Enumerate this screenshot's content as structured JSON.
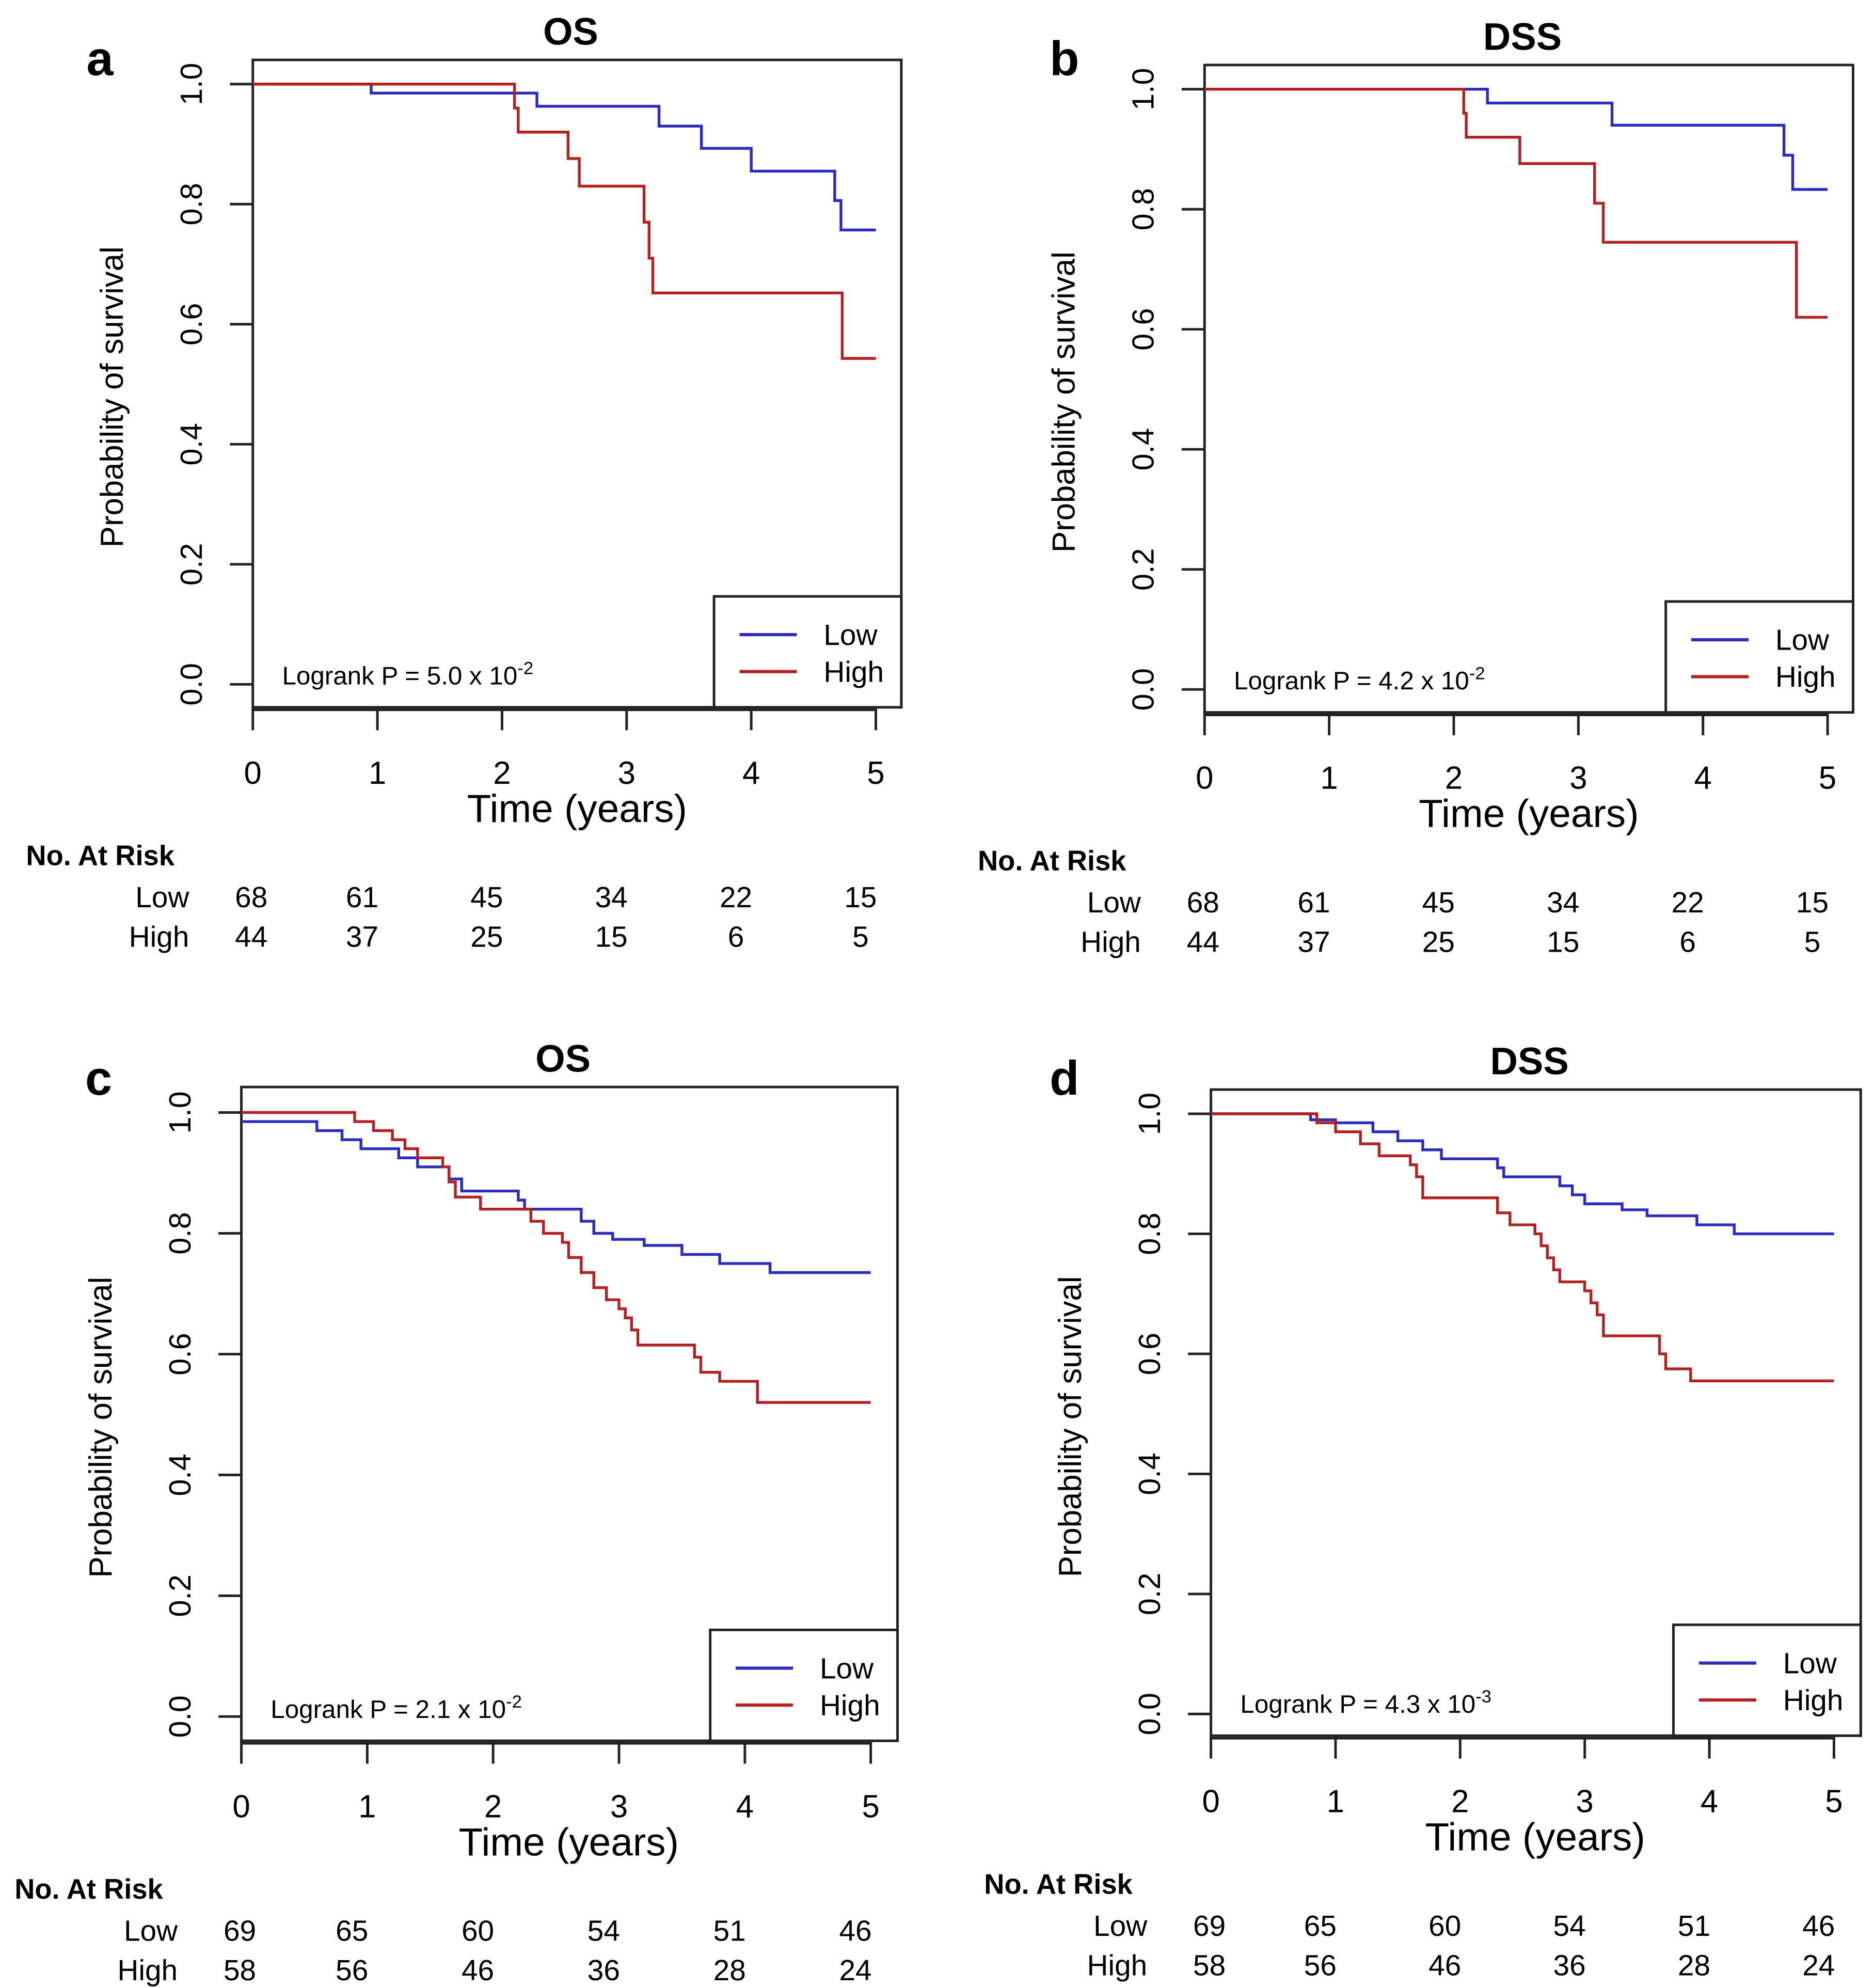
{
  "colors": {
    "low": "#2b2bbd",
    "high": "#b22222",
    "axis": "#222222"
  },
  "chart_data": [
    {
      "panel": "a",
      "type": "line",
      "step": true,
      "title": "OS",
      "xlabel": "Time (years)",
      "ylabel": "Probability of survival",
      "xlim": [
        0,
        5
      ],
      "ylim": [
        0,
        1
      ],
      "xticks": [
        "0",
        "1",
        "2",
        "3",
        "4",
        "5"
      ],
      "yticks": [
        "0.0",
        "0.2",
        "0.4",
        "0.6",
        "0.8",
        "1.0"
      ],
      "legend": {
        "position": "bottom-right",
        "entries": [
          "Low",
          "High"
        ]
      },
      "annotation": {
        "text": "Logrank P = 5.0 x 10",
        "exp": "-2"
      },
      "series": [
        {
          "name": "Low",
          "points": [
            [
              0,
              1
            ],
            [
              0.95,
              0.985
            ],
            [
              2.28,
              0.963
            ],
            [
              3.26,
              0.93
            ],
            [
              3.6,
              0.893
            ],
            [
              4.0,
              0.855
            ],
            [
              4.67,
              0.806
            ],
            [
              4.72,
              0.757
            ],
            [
              5,
              0.757
            ]
          ]
        },
        {
          "name": "High",
          "points": [
            [
              0,
              1
            ],
            [
              2.1,
              0.96
            ],
            [
              2.13,
              0.92
            ],
            [
              2.53,
              0.876
            ],
            [
              2.62,
              0.83
            ],
            [
              3.14,
              0.77
            ],
            [
              3.18,
              0.71
            ],
            [
              3.21,
              0.652
            ],
            [
              4.73,
              0.543
            ],
            [
              5,
              0.543
            ]
          ]
        }
      ],
      "at_risk": {
        "title": "No. At Risk",
        "rows": [
          {
            "label": "Low",
            "values": [
              "68",
              "61",
              "45",
              "34",
              "22",
              "15"
            ]
          },
          {
            "label": "High",
            "values": [
              "44",
              "37",
              "25",
              "15",
              "6",
              "5"
            ]
          }
        ]
      }
    },
    {
      "panel": "b",
      "type": "line",
      "step": true,
      "title": "DSS",
      "xlabel": "Time (years)",
      "ylabel": "Probability of survival",
      "xlim": [
        0,
        5
      ],
      "ylim": [
        0,
        1
      ],
      "xticks": [
        "0",
        "1",
        "2",
        "3",
        "4",
        "5"
      ],
      "yticks": [
        "0.0",
        "0.2",
        "0.4",
        "0.6",
        "0.8",
        "1.0"
      ],
      "legend": {
        "position": "bottom-right",
        "entries": [
          "Low",
          "High"
        ]
      },
      "annotation": {
        "text": "Logrank P = 4.2 x 10",
        "exp": "-2"
      },
      "series": [
        {
          "name": "Low",
          "points": [
            [
              0,
              1
            ],
            [
              2.27,
              0.977
            ],
            [
              3.27,
              0.94
            ],
            [
              4.65,
              0.89
            ],
            [
              4.72,
              0.833
            ],
            [
              5,
              0.833
            ]
          ]
        },
        {
          "name": "High",
          "points": [
            [
              0,
              1
            ],
            [
              2.08,
              0.96
            ],
            [
              2.1,
              0.92
            ],
            [
              2.53,
              0.876
            ],
            [
              3.13,
              0.81
            ],
            [
              3.2,
              0.745
            ],
            [
              4.75,
              0.62
            ],
            [
              5,
              0.62
            ]
          ]
        }
      ],
      "at_risk": {
        "title": "No. At Risk",
        "rows": [
          {
            "label": "Low",
            "values": [
              "68",
              "61",
              "45",
              "34",
              "22",
              "15"
            ]
          },
          {
            "label": "High",
            "values": [
              "44",
              "37",
              "25",
              "15",
              "6",
              "5"
            ]
          }
        ]
      }
    },
    {
      "panel": "c",
      "type": "line",
      "step": true,
      "title": "OS",
      "xlabel": "Time (years)",
      "ylabel": "Probability of survival",
      "xlim": [
        0,
        5
      ],
      "ylim": [
        0,
        1
      ],
      "xticks": [
        "0",
        "1",
        "2",
        "3",
        "4",
        "5"
      ],
      "yticks": [
        "0.0",
        "0.2",
        "0.4",
        "0.6",
        "0.8",
        "1.0"
      ],
      "legend": {
        "position": "bottom-right",
        "entries": [
          "Low",
          "High"
        ]
      },
      "annotation": {
        "text": "Logrank P = 2.1 x 10",
        "exp": "-2"
      },
      "series": [
        {
          "name": "Low",
          "points": [
            [
              0,
              0.985
            ],
            [
              0.6,
              0.97
            ],
            [
              0.8,
              0.955
            ],
            [
              0.95,
              0.94
            ],
            [
              1.25,
              0.925
            ],
            [
              1.4,
              0.91
            ],
            [
              1.65,
              0.89
            ],
            [
              1.75,
              0.87
            ],
            [
              2.2,
              0.855
            ],
            [
              2.25,
              0.84
            ],
            [
              2.7,
              0.82
            ],
            [
              2.8,
              0.8
            ],
            [
              2.95,
              0.79
            ],
            [
              3.2,
              0.78
            ],
            [
              3.5,
              0.765
            ],
            [
              3.8,
              0.75
            ],
            [
              4.2,
              0.735
            ],
            [
              5,
              0.735
            ]
          ]
        },
        {
          "name": "High",
          "points": [
            [
              0,
              1
            ],
            [
              0.9,
              0.985
            ],
            [
              1.05,
              0.97
            ],
            [
              1.2,
              0.955
            ],
            [
              1.3,
              0.94
            ],
            [
              1.4,
              0.925
            ],
            [
              1.6,
              0.91
            ],
            [
              1.65,
              0.885
            ],
            [
              1.7,
              0.86
            ],
            [
              1.9,
              0.84
            ],
            [
              2.3,
              0.82
            ],
            [
              2.4,
              0.8
            ],
            [
              2.55,
              0.785
            ],
            [
              2.6,
              0.76
            ],
            [
              2.7,
              0.735
            ],
            [
              2.8,
              0.71
            ],
            [
              2.9,
              0.69
            ],
            [
              3.0,
              0.675
            ],
            [
              3.05,
              0.66
            ],
            [
              3.1,
              0.64
            ],
            [
              3.15,
              0.615
            ],
            [
              3.6,
              0.595
            ],
            [
              3.65,
              0.57
            ],
            [
              3.8,
              0.555
            ],
            [
              4.1,
              0.52
            ],
            [
              5,
              0.52
            ]
          ]
        }
      ],
      "at_risk": {
        "title": "No. At Risk",
        "rows": [
          {
            "label": "Low",
            "values": [
              "69",
              "65",
              "60",
              "54",
              "51",
              "46"
            ]
          },
          {
            "label": "High",
            "values": [
              "58",
              "56",
              "46",
              "36",
              "28",
              "24"
            ]
          }
        ]
      }
    },
    {
      "panel": "d",
      "type": "line",
      "step": true,
      "title": "DSS",
      "xlabel": "Time (years)",
      "ylabel": "Probability of survival",
      "xlim": [
        0,
        5
      ],
      "ylim": [
        0,
        1
      ],
      "xticks": [
        "0",
        "1",
        "2",
        "3",
        "4",
        "5"
      ],
      "yticks": [
        "0.0",
        "0.2",
        "0.4",
        "0.6",
        "0.8",
        "1.0"
      ],
      "legend": {
        "position": "bottom-right",
        "entries": [
          "Low",
          "High"
        ]
      },
      "annotation": {
        "text": "Logrank P = 4.3 x 10",
        "exp": "-3"
      },
      "series": [
        {
          "name": "Low",
          "points": [
            [
              0,
              1
            ],
            [
              0.8,
              0.99
            ],
            [
              1.0,
              0.985
            ],
            [
              1.3,
              0.97
            ],
            [
              1.5,
              0.955
            ],
            [
              1.7,
              0.94
            ],
            [
              1.85,
              0.925
            ],
            [
              2.3,
              0.91
            ],
            [
              2.35,
              0.895
            ],
            [
              2.8,
              0.88
            ],
            [
              2.9,
              0.865
            ],
            [
              3.0,
              0.85
            ],
            [
              3.3,
              0.84
            ],
            [
              3.5,
              0.83
            ],
            [
              3.9,
              0.815
            ],
            [
              4.2,
              0.8
            ],
            [
              5,
              0.8
            ]
          ]
        },
        {
          "name": "High",
          "points": [
            [
              0,
              1
            ],
            [
              0.85,
              0.985
            ],
            [
              1.0,
              0.97
            ],
            [
              1.2,
              0.95
            ],
            [
              1.35,
              0.93
            ],
            [
              1.6,
              0.915
            ],
            [
              1.65,
              0.895
            ],
            [
              1.7,
              0.86
            ],
            [
              2.3,
              0.835
            ],
            [
              2.4,
              0.815
            ],
            [
              2.6,
              0.8
            ],
            [
              2.65,
              0.78
            ],
            [
              2.7,
              0.76
            ],
            [
              2.75,
              0.74
            ],
            [
              2.8,
              0.72
            ],
            [
              3.0,
              0.705
            ],
            [
              3.05,
              0.685
            ],
            [
              3.1,
              0.665
            ],
            [
              3.15,
              0.63
            ],
            [
              3.6,
              0.6
            ],
            [
              3.65,
              0.575
            ],
            [
              3.85,
              0.555
            ],
            [
              5,
              0.555
            ]
          ]
        }
      ],
      "at_risk": {
        "title": "No. At Risk",
        "rows": [
          {
            "label": "Low",
            "values": [
              "69",
              "65",
              "60",
              "54",
              "51",
              "46"
            ]
          },
          {
            "label": "High",
            "values": [
              "58",
              "56",
              "46",
              "36",
              "28",
              "24"
            ]
          }
        ]
      }
    }
  ]
}
